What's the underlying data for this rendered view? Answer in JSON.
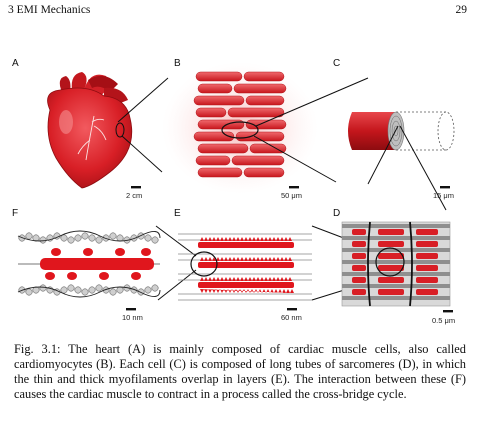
{
  "header": {
    "chapter": "3  EMI Mechanics",
    "page_number": "29"
  },
  "panels": {
    "A": {
      "letter": "A",
      "scale": "2 cm"
    },
    "B": {
      "letter": "B",
      "scale": "50 μm"
    },
    "C": {
      "letter": "C",
      "scale": "15 μm"
    },
    "F": {
      "letter": "F",
      "scale": "10 nm"
    },
    "E": {
      "letter": "E",
      "scale": "60 nm"
    },
    "D": {
      "letter": "D",
      "scale": "0.5 μm"
    }
  },
  "caption": "Fig. 3.1: The heart (A) is mainly composed of cardiac muscle cells, also called cardiomyocytes (B). Each cell (C) is composed of long tubes of sarcomeres (D), in which the thin and thick myofilaments overlap in layers (E). The interaction between these (F) causes the cardiac muscle to contract in a process called the cross-bridge cycle.",
  "colors": {
    "muscle_red": "#d81f26",
    "dark_red": "#a50f15",
    "light_red": "#f26b6b",
    "myosin_gray": "#9a9a9a"
  }
}
